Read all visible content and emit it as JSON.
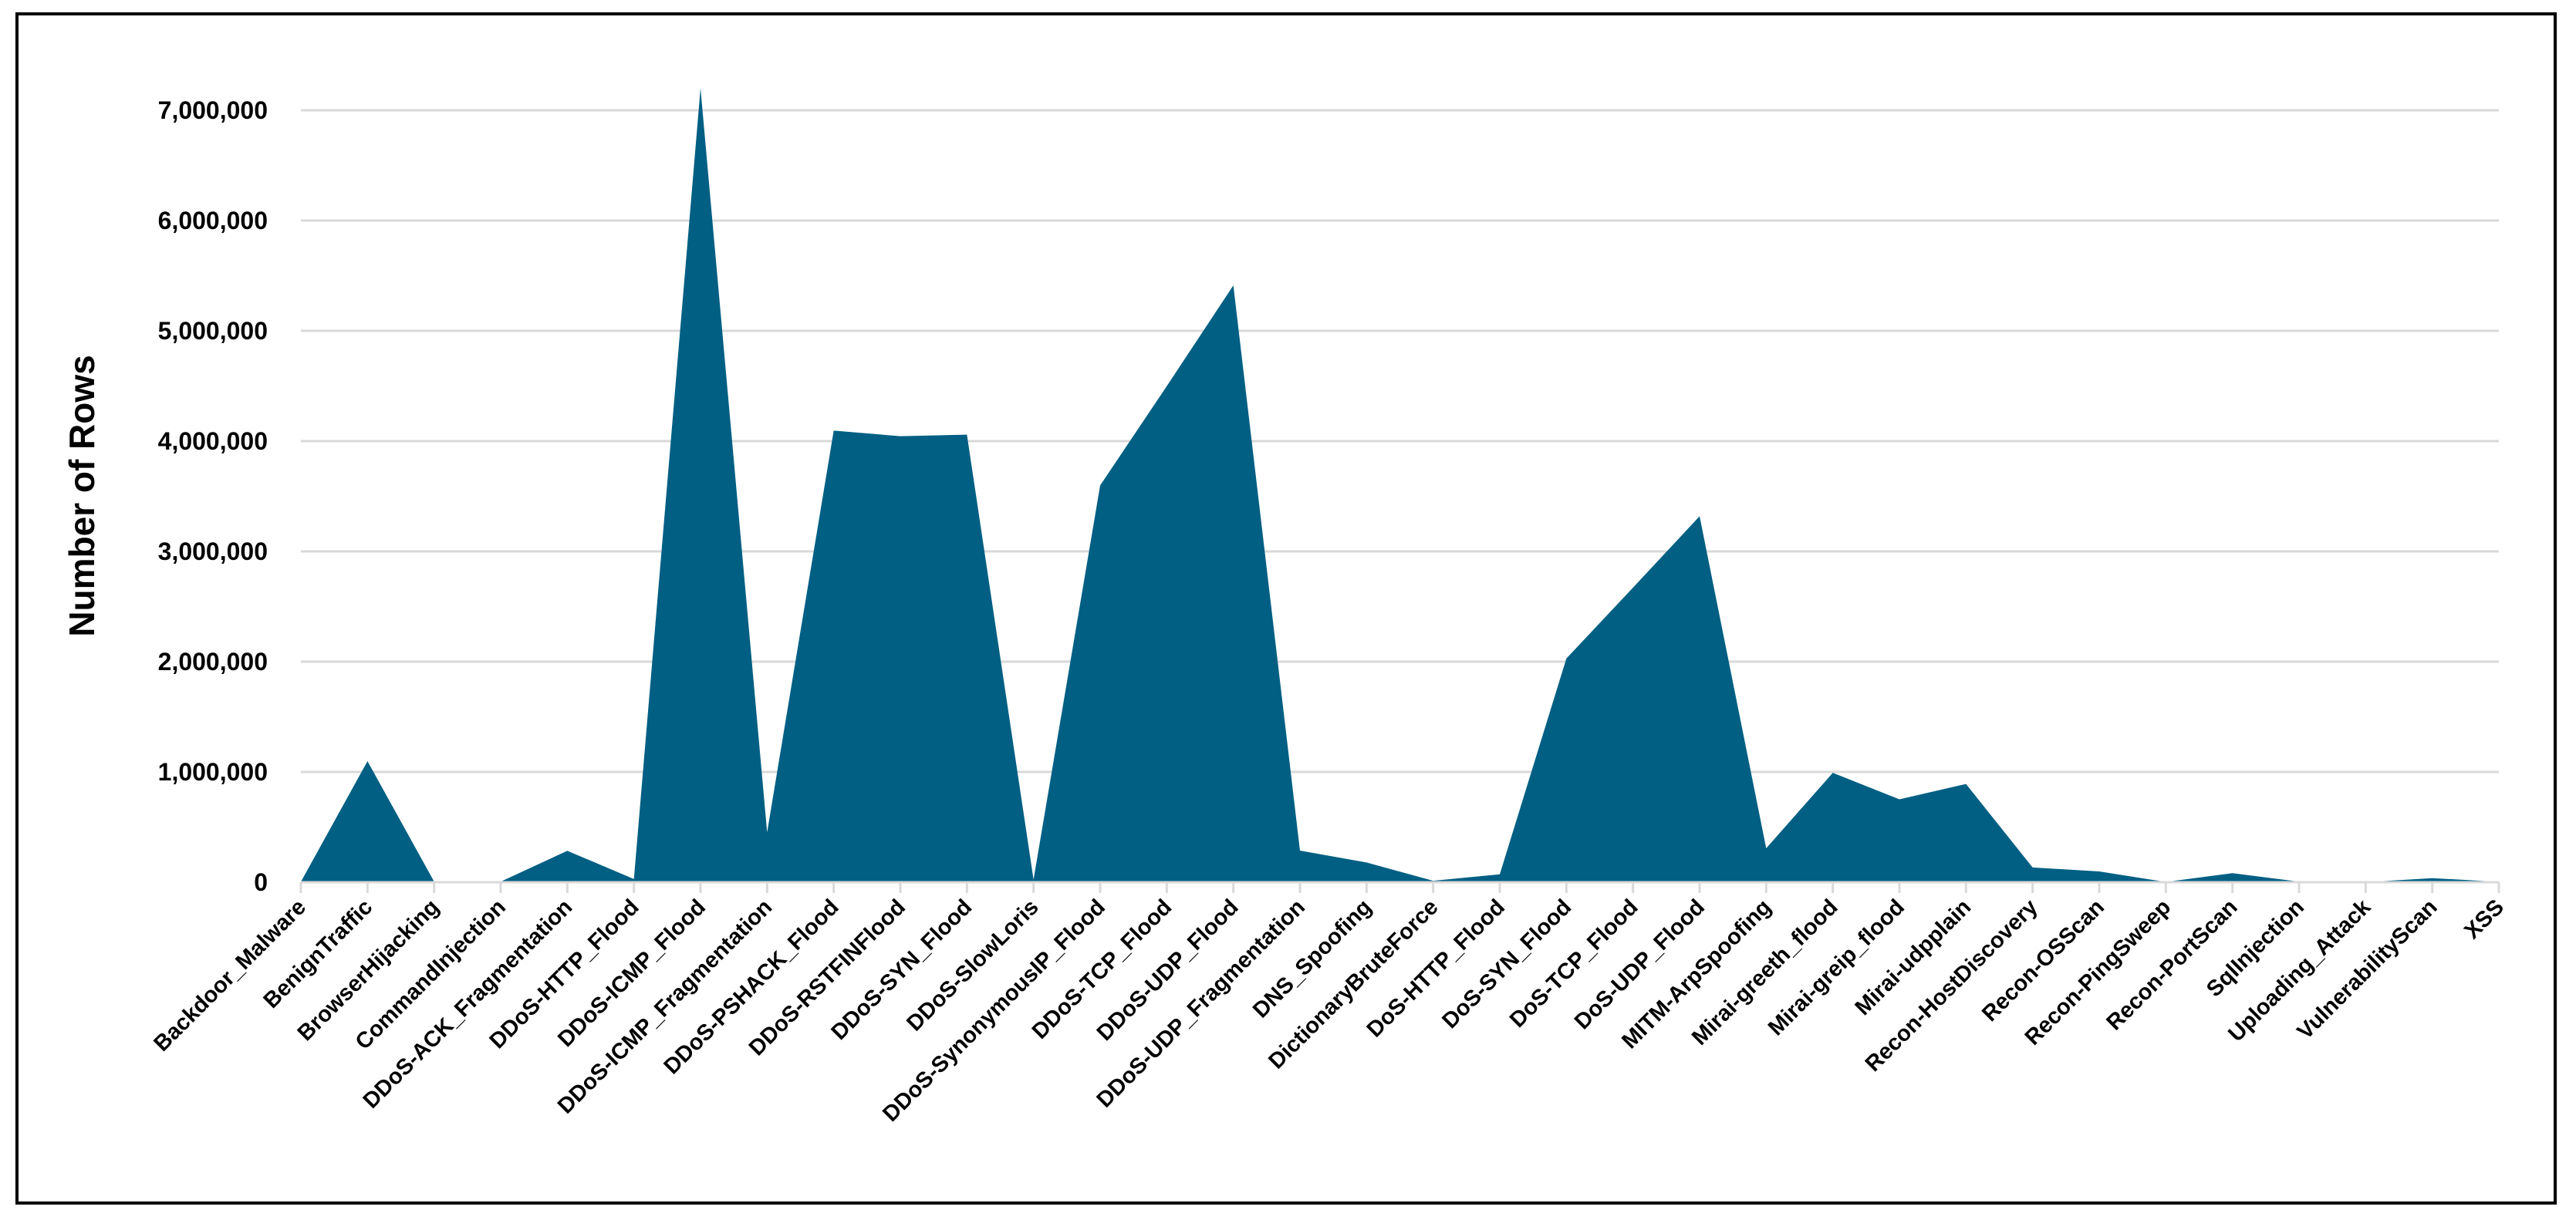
{
  "chart_data": {
    "type": "area",
    "title": "",
    "xlabel": "",
    "ylabel": "Number of Rows",
    "ylim": [
      0,
      7000000
    ],
    "yticks": [
      0,
      1000000,
      2000000,
      3000000,
      4000000,
      5000000,
      6000000,
      7000000
    ],
    "ytick_labels": [
      "0",
      "1,000,000",
      "2,000,000",
      "3,000,000",
      "4,000,000",
      "5,000,000",
      "6,000,000",
      "7,000,000"
    ],
    "grid": true,
    "fill_color": "#005f83",
    "categories": [
      "Backdoor_Malware",
      "BenignTraffic",
      "BrowserHijacking",
      "CommandInjection",
      "DDoS-ACK_Fragmentation",
      "DDoS-HTTP_Flood",
      "DDoS-ICMP_Flood",
      "DDoS-ICMP_Fragmentation",
      "DDoS-PSHACK_Flood",
      "DDoS-RSTFINFlood",
      "DDoS-SYN_Flood",
      "DDoS-SlowLoris",
      "DDoS-SynonymousIP_Flood",
      "DDoS-TCP_Flood",
      "DDoS-UDP_Flood",
      "DDoS-UDP_Fragmentation",
      "DNS_Spoofing",
      "DictionaryBruteForce",
      "DoS-HTTP_Flood",
      "DoS-SYN_Flood",
      "DoS-TCP_Flood",
      "DoS-UDP_Flood",
      "MITM-ArpSpoofing",
      "Mirai-greeth_flood",
      "Mirai-greip_flood",
      "Mirai-udpplain",
      "Recon-HostDiscovery",
      "Recon-OSScan",
      "Recon-PingSweep",
      "Recon-PortScan",
      "SqlInjection",
      "Uploading_Attack",
      "VulnerabilityScan",
      "XSS"
    ],
    "values": [
      3200,
      1098000,
      5900,
      5400,
      285000,
      28800,
      7200000,
      452000,
      4095000,
      4045000,
      4059000,
      23400,
      3598000,
      4498000,
      5412000,
      287000,
      179000,
      13000,
      72000,
      2029000,
      2671000,
      3319000,
      308000,
      992000,
      752000,
      891000,
      134000,
      98000,
      2300,
      82000,
      5200,
      1300,
      37000,
      3800
    ]
  }
}
